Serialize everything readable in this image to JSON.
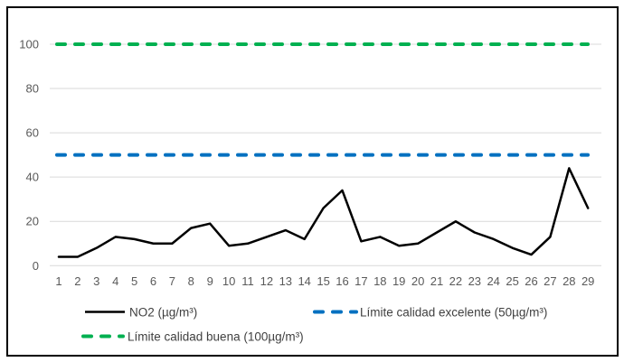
{
  "chart_data": {
    "type": "line",
    "title": "",
    "xlabel": "",
    "ylabel": "",
    "x": [
      1,
      2,
      3,
      4,
      5,
      6,
      7,
      8,
      9,
      10,
      11,
      12,
      13,
      14,
      15,
      16,
      17,
      18,
      19,
      20,
      21,
      22,
      23,
      24,
      25,
      26,
      27,
      28,
      29
    ],
    "series": [
      {
        "name": "NO2 (µg/m³)",
        "style": "solid",
        "color": "#000000",
        "values": [
          4,
          4,
          8,
          13,
          12,
          10,
          10,
          17,
          19,
          9,
          10,
          13,
          16,
          12,
          26,
          34,
          11,
          13,
          9,
          10,
          15,
          20,
          15,
          12,
          8,
          5,
          13,
          44,
          26
        ]
      },
      {
        "name": "Límite calidad excelente (50µg/m³)",
        "style": "dashed",
        "color": "#0070C0",
        "constant": 50
      },
      {
        "name": "Límite calidad buena (100µg/m³)",
        "style": "dashed",
        "color": "#00B050",
        "constant": 100
      }
    ],
    "ylim": [
      0,
      100
    ],
    "yticks": [
      0,
      20,
      40,
      60,
      80,
      100
    ],
    "grid": true,
    "legend_position": "bottom"
  },
  "colors": {
    "grid": "#D9D9D9",
    "axis_text": "#595959",
    "legend_text": "#404040",
    "frame_border": "#000000",
    "background": "#FFFFFF"
  }
}
